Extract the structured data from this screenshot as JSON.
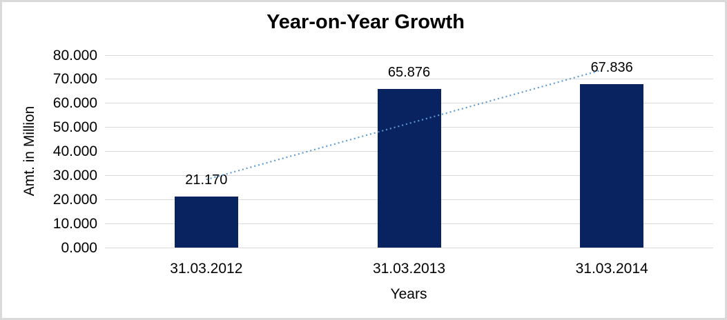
{
  "window": {
    "background_color": "#ffffff",
    "frame_border_color": "#d9d9d9"
  },
  "chart_data": {
    "type": "bar",
    "title": "Year-on-Year Growth",
    "xlabel": "Years",
    "ylabel": "Amt. in Million",
    "categories": [
      "31.03.2012",
      "31.03.2013",
      "31.03.2014"
    ],
    "values": [
      21.17,
      65.876,
      67.836
    ],
    "value_labels": [
      "21.170",
      "65.876",
      "67.836"
    ],
    "y_ticks": [
      "80.000",
      "70.000",
      "60.000",
      "50.000",
      "40.000",
      "30.000",
      "20.000",
      "10.000",
      "0.000"
    ],
    "ylim": [
      0,
      80
    ],
    "grid": true,
    "legend": "none",
    "bar_color": "#08235F",
    "gridline_color": "#d9d9d9",
    "text_color": "#000000",
    "trendline": {
      "type": "linear",
      "style": "dotted",
      "color": "#5B9BD5",
      "endpoint_values": [
        28.29,
        74.96
      ]
    }
  }
}
